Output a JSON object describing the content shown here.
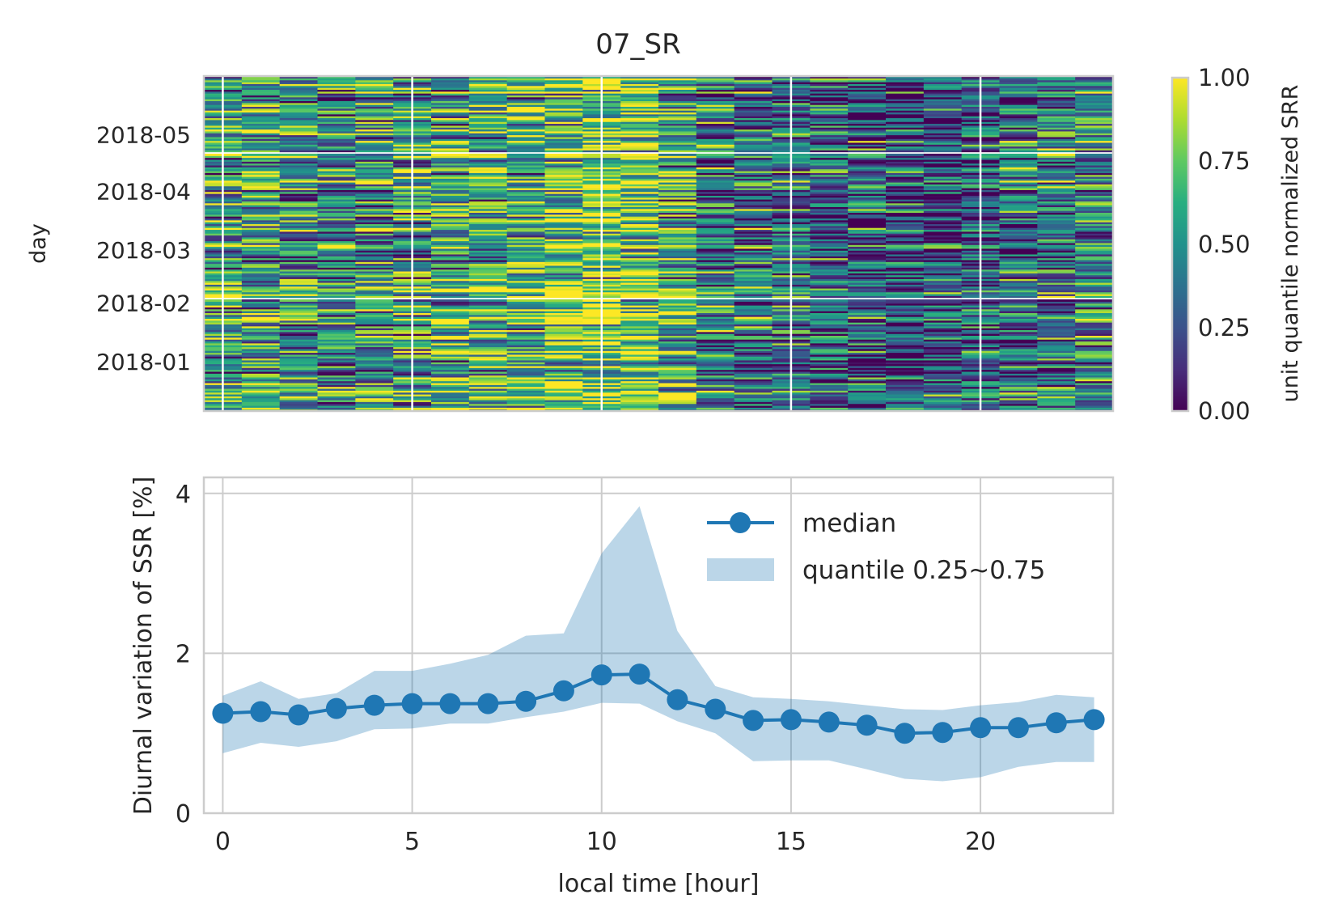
{
  "figure_title": "07_SR",
  "chart_data": [
    {
      "type": "heatmap",
      "title": "07_SR",
      "ylabel": "day",
      "xlim": [
        -0.5,
        23.5
      ],
      "x_hours": [
        0,
        1,
        2,
        3,
        4,
        5,
        6,
        7,
        8,
        9,
        10,
        11,
        12,
        13,
        14,
        15,
        16,
        17,
        18,
        19,
        20,
        21,
        22,
        23
      ],
      "y_tick_labels": [
        "2018-05",
        "2018-04",
        "2018-03",
        "2018-02",
        "2018-01"
      ],
      "y_tick_dates": [
        "2018-05-01",
        "2018-04-01",
        "2018-03-01",
        "2018-02-01",
        "2018-01-01"
      ],
      "date_range": [
        "2017-12-06",
        "2018-05-31"
      ],
      "missing_days": [
        "2018-04-21",
        "2018-02-03"
      ],
      "colormap": "viridis",
      "colorbar": {
        "label": "unit quantile normalized SRR",
        "ticks": [
          "0.00",
          "0.25",
          "0.50",
          "0.75",
          "1.00"
        ],
        "range": [
          0,
          1
        ]
      },
      "hourly_mean_level": [
        0.55,
        0.57,
        0.5,
        0.48,
        0.52,
        0.55,
        0.58,
        0.62,
        0.66,
        0.72,
        0.8,
        0.76,
        0.6,
        0.45,
        0.4,
        0.37,
        0.3,
        0.28,
        0.22,
        0.25,
        0.3,
        0.36,
        0.42,
        0.45
      ],
      "grid": true
    },
    {
      "type": "line",
      "xlabel": "local time [hour]",
      "ylabel": "Diurnal variation of SSR [%]",
      "xlim": [
        -0.5,
        23.5
      ],
      "ylim": [
        0,
        4.2
      ],
      "xticks": [
        0,
        5,
        10,
        15,
        20
      ],
      "yticks": [
        0,
        2,
        4
      ],
      "x": [
        0,
        1,
        2,
        3,
        4,
        5,
        6,
        7,
        8,
        9,
        10,
        11,
        12,
        13,
        14,
        15,
        16,
        17,
        18,
        19,
        20,
        21,
        22,
        23
      ],
      "series": [
        {
          "name": "median",
          "marker": "circle",
          "color": "#1f77b4",
          "values": [
            1.25,
            1.27,
            1.23,
            1.31,
            1.35,
            1.37,
            1.37,
            1.37,
            1.4,
            1.53,
            1.73,
            1.74,
            1.42,
            1.3,
            1.16,
            1.17,
            1.14,
            1.1,
            1.0,
            1.01,
            1.07,
            1.07,
            1.13,
            1.17
          ]
        },
        {
          "name": "quantile 0.25~0.75",
          "type": "band",
          "color": "#1f77b4",
          "lower": [
            0.75,
            0.88,
            0.83,
            0.9,
            1.05,
            1.06,
            1.12,
            1.12,
            1.2,
            1.27,
            1.38,
            1.37,
            1.15,
            1.0,
            0.65,
            0.66,
            0.66,
            0.55,
            0.43,
            0.4,
            0.45,
            0.58,
            0.64,
            0.64
          ],
          "upper": [
            1.47,
            1.65,
            1.43,
            1.5,
            1.78,
            1.78,
            1.87,
            1.98,
            2.22,
            2.25,
            3.25,
            3.84,
            2.28,
            1.59,
            1.45,
            1.43,
            1.4,
            1.35,
            1.3,
            1.29,
            1.35,
            1.39,
            1.48,
            1.45
          ]
        }
      ],
      "legend_position": "upper right",
      "grid": true
    }
  ],
  "colors": {
    "series": "#1f77b4",
    "grid": "#cccccc",
    "spine": "#cccccc",
    "text": "#262626"
  }
}
